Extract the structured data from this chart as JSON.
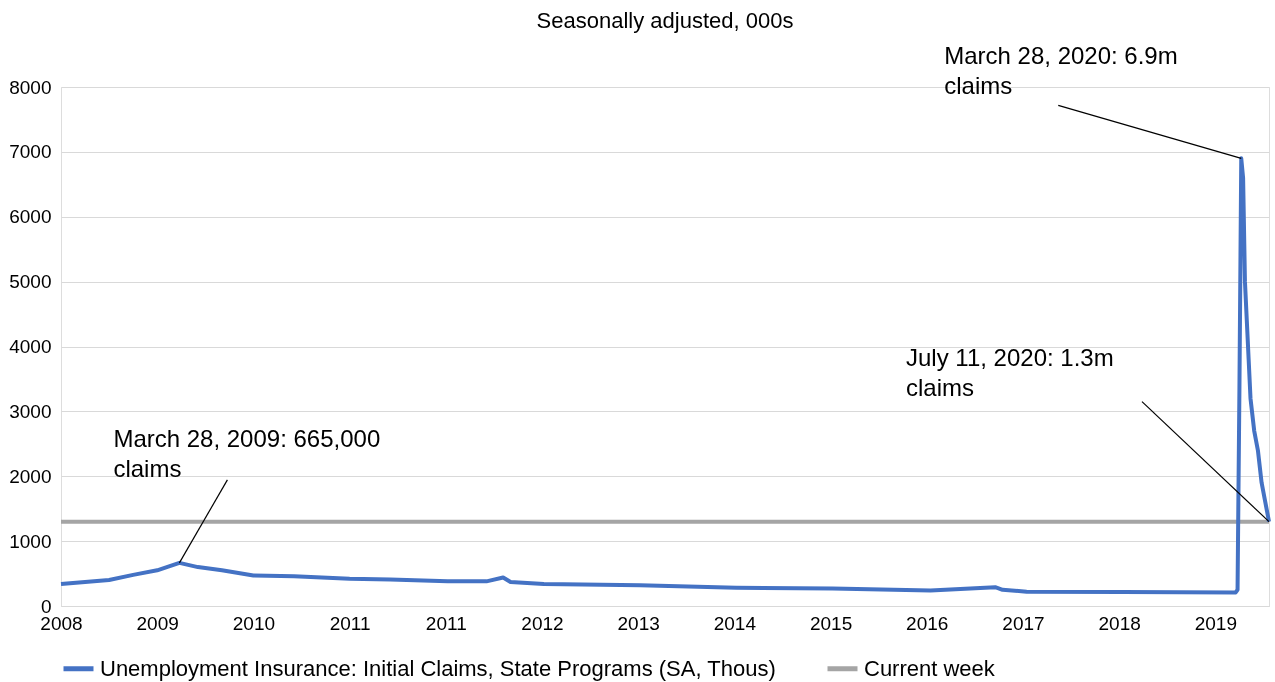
{
  "chart_data": {
    "type": "line",
    "subtitle": "Seasonally adjusted, 000s",
    "x": [
      "2008-01-05",
      "2008-04-05",
      "2008-07-05",
      "2008-10-04",
      "2009-01-03",
      "2009-03-28",
      "2009-06-06",
      "2009-09-05",
      "2010-01-02",
      "2010-06-05",
      "2011-01-01",
      "2011-06-04",
      "2012-01-07",
      "2012-06-02",
      "2012-08-04",
      "2012-09-01",
      "2013-01-05",
      "2014-01-04",
      "2015-01-03",
      "2016-01-02",
      "2017-01-07",
      "2017-09-09",
      "2017-10-07",
      "2018-01-06",
      "2019-01-05",
      "2020-03-07",
      "2020-03-14",
      "2020-03-21",
      "2020-03-28",
      "2020-04-04",
      "2020-04-11",
      "2020-04-18",
      "2020-04-25",
      "2020-05-02",
      "2020-05-16",
      "2020-05-30",
      "2020-06-13",
      "2020-06-27",
      "2020-07-04",
      "2020-07-11"
    ],
    "series": [
      {
        "name": "Unemployment Insurance: Initial Claims, State Programs (SA, Thous)",
        "color": "#4472c4",
        "values": [
          340,
          370,
          400,
          480,
          550,
          665,
          600,
          550,
          470,
          460,
          420,
          410,
          380,
          380,
          440,
          370,
          340,
          320,
          280,
          270,
          240,
          290,
          250,
          220,
          215,
          210,
          250,
          3300,
          6900,
          6600,
          5000,
          4400,
          3800,
          3200,
          2700,
          2400,
          1900,
          1600,
          1450,
          1300
        ]
      }
    ],
    "ref_lines": [
      {
        "axis": "y",
        "value": 1300,
        "label": "Current week",
        "color": "#a5a5a5"
      }
    ],
    "xlim": [
      "2008-01-05",
      "2020-07-11"
    ],
    "xticks": [
      {
        "value": "2008-01-05",
        "label": "2008"
      },
      {
        "value": "2009-01-03",
        "label": "2009"
      },
      {
        "value": "2010-01-02",
        "label": "2010"
      },
      {
        "value": "2011-01-01",
        "label": "2011"
      },
      {
        "value": "2011-12-31",
        "label": "2011"
      },
      {
        "value": "2012-12-29",
        "label": "2012"
      },
      {
        "value": "2013-12-28",
        "label": "2013"
      },
      {
        "value": "2014-12-27",
        "label": "2014"
      },
      {
        "value": "2015-12-26",
        "label": "2015"
      },
      {
        "value": "2016-12-24",
        "label": "2016"
      },
      {
        "value": "2017-12-23",
        "label": "2017"
      },
      {
        "value": "2018-12-22",
        "label": "2018"
      },
      {
        "value": "2019-12-21",
        "label": "2019"
      }
    ],
    "ylim": [
      0,
      8000
    ],
    "yticks": [
      0,
      1000,
      2000,
      3000,
      4000,
      5000,
      6000,
      7000,
      8000
    ],
    "grid": "y",
    "legend": "bottom",
    "marker": "none",
    "line_style": "solid",
    "annotations": [
      {
        "text": "March 28, 2020: 6.9m claims",
        "x": "2020-03-28",
        "y": 6900
      },
      {
        "text": "March 28, 2009: 665,000 claims",
        "x": "2009-03-28",
        "y": 665
      },
      {
        "text": "July 11, 2020: 1.3m claims",
        "x": "2020-07-11",
        "y": 1300
      }
    ]
  }
}
